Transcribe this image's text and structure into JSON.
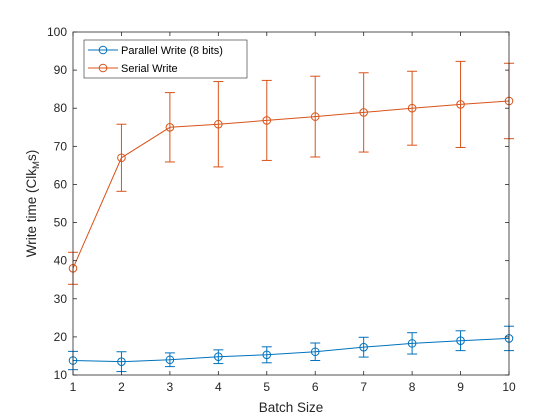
{
  "chart_data": {
    "type": "line",
    "title": "",
    "xlabel": "Batch Size",
    "ylabel": "Write time (Clk",
    "ylabel_subscript": "M",
    "ylabel_suffix": "s)",
    "xlim": [
      1,
      10
    ],
    "ylim": [
      10,
      100
    ],
    "xticks": [
      1,
      2,
      3,
      4,
      5,
      6,
      7,
      8,
      9,
      10
    ],
    "yticks": [
      10,
      20,
      30,
      40,
      50,
      60,
      70,
      80,
      90,
      100
    ],
    "grid": false,
    "legend_position": "top-left",
    "x": [
      1,
      2,
      3,
      4,
      5,
      6,
      7,
      8,
      9,
      10
    ],
    "series": [
      {
        "name": "Parallel Write (8 bits)",
        "color": "#0072BD",
        "marker": "circle",
        "values": [
          13.8,
          13.5,
          14.0,
          14.8,
          15.3,
          16.1,
          17.3,
          18.3,
          19.0,
          19.6
        ],
        "errors": [
          2.4,
          2.6,
          1.8,
          1.8,
          2.1,
          2.3,
          2.6,
          2.8,
          2.6,
          3.2
        ]
      },
      {
        "name": "Serial Write",
        "color": "#D95319",
        "marker": "circle",
        "values": [
          38.0,
          67.0,
          75.0,
          75.8,
          76.8,
          77.8,
          78.9,
          80.0,
          81.0,
          81.9
        ],
        "errors": [
          4.2,
          8.8,
          9.1,
          11.2,
          10.5,
          10.6,
          10.4,
          9.7,
          11.3,
          9.9
        ]
      }
    ]
  }
}
